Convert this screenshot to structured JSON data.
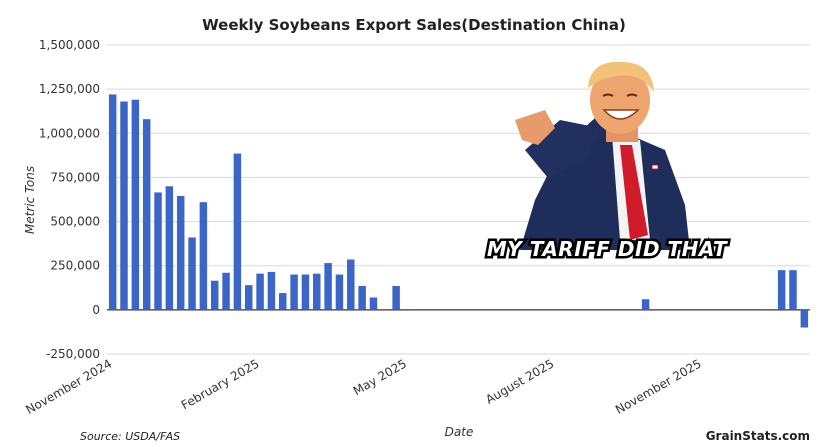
{
  "chart_data": {
    "type": "bar",
    "title": "Weekly Soybeans Export Sales(Destination China)",
    "xlabel": "Date",
    "ylabel": "Metric Tons",
    "ylim": [
      -250000,
      1500000
    ],
    "yticks": [
      -250000,
      0,
      250000,
      500000,
      750000,
      1000000,
      1250000,
      1500000
    ],
    "ytick_labels": [
      "-250,000",
      "0",
      "250,000",
      "500,000",
      "750,000",
      "1,000,000",
      "1,250,000",
      "1,500,000"
    ],
    "xtick_labels": [
      {
        "label": "November 2024",
        "index": 0
      },
      {
        "label": "February 2025",
        "index": 13
      },
      {
        "label": "May 2025",
        "index": 26
      },
      {
        "label": "August 2025",
        "index": 39
      },
      {
        "label": "November 2025",
        "index": 52
      }
    ],
    "values": [
      1220000,
      1180000,
      1190000,
      1080000,
      665000,
      700000,
      645000,
      410000,
      610000,
      165000,
      210000,
      885000,
      140000,
      205000,
      215000,
      95000,
      200000,
      200000,
      205000,
      265000,
      200000,
      285000,
      135000,
      70000,
      0,
      135000,
      0,
      0,
      0,
      0,
      0,
      0,
      0,
      0,
      0,
      0,
      0,
      0,
      0,
      0,
      0,
      0,
      0,
      0,
      0,
      0,
      0,
      60000,
      0,
      0,
      0,
      0,
      0,
      0,
      0,
      0,
      0,
      0,
      0,
      225000,
      225000,
      -100000
    ],
    "bar_color": "#3b66c7",
    "grid": true,
    "source": "Source: USDA/FAS",
    "brand": "GrainStats.com"
  },
  "meme": {
    "caption": "MY TARIFF DID THAT"
  }
}
